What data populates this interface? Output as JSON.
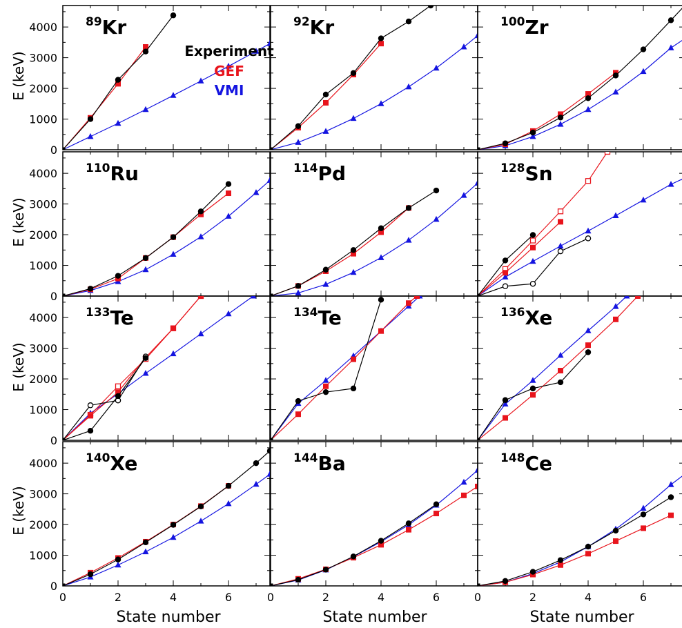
{
  "figure": {
    "ylabel": "E (keV)",
    "xlabel": "State number",
    "legend": [
      {
        "label": "Experiment",
        "color": "#000000"
      },
      {
        "label": "GEF",
        "color": "#e8141c"
      },
      {
        "label": "VMI",
        "color": "#1414e0"
      }
    ],
    "colors": {
      "experiment": "#000000",
      "gef": "#e8141c",
      "vmi": "#1414e0"
    },
    "y_ticks": [
      "0",
      "1000",
      "2000",
      "3000",
      "4000"
    ],
    "x_ticks": [
      "0",
      "2",
      "4",
      "6"
    ]
  },
  "chart_data": [
    {
      "type": "line",
      "mass": "89",
      "element": "Kr",
      "xlim": [
        0,
        7.5
      ],
      "ylim": [
        0,
        4700
      ],
      "series": [
        {
          "name": "Experiment",
          "marker": "circle",
          "color": "#000000",
          "x": [
            0,
            1,
            2,
            3,
            4
          ],
          "values": [
            0,
            1000,
            2280,
            3200,
            4380
          ]
        },
        {
          "name": "GEF",
          "marker": "square",
          "color": "#e8141c",
          "x": [
            0,
            1,
            2,
            3
          ],
          "values": [
            0,
            1040,
            2150,
            3350
          ]
        },
        {
          "name": "VMI",
          "marker": "triangle",
          "color": "#1414e0",
          "x": [
            0,
            1,
            2,
            3,
            4,
            5,
            6,
            7,
            7.5
          ],
          "values": [
            0,
            430,
            860,
            1310,
            1770,
            2240,
            2720,
            3210,
            3460
          ],
          "marker_count": 8
        }
      ]
    },
    {
      "type": "line",
      "mass": "92",
      "element": "Kr",
      "xlim": [
        0,
        7.5
      ],
      "ylim": [
        0,
        4700
      ],
      "series": [
        {
          "name": "Experiment",
          "marker": "circle",
          "color": "#000000",
          "x": [
            0,
            1,
            2,
            3,
            4,
            5,
            5.8
          ],
          "values": [
            0,
            770,
            1800,
            2500,
            3630,
            4180,
            4700
          ],
          "marker_count": 6
        },
        {
          "name": "GEF",
          "marker": "square",
          "color": "#e8141c",
          "x": [
            0,
            1,
            2,
            3,
            4
          ],
          "values": [
            0,
            720,
            1530,
            2450,
            3460
          ]
        },
        {
          "name": "VMI",
          "marker": "triangle",
          "color": "#1414e0",
          "x": [
            0,
            1,
            2,
            3,
            4,
            5,
            6,
            7,
            7.5
          ],
          "values": [
            0,
            240,
            600,
            1020,
            1500,
            2050,
            2660,
            3350,
            3720
          ],
          "marker_count": 8
        }
      ]
    },
    {
      "type": "line",
      "mass": "100",
      "element": "Zr",
      "xlim": [
        0,
        7.5
      ],
      "ylim": [
        0,
        4700
      ],
      "series": [
        {
          "name": "Experiment",
          "marker": "circle",
          "color": "#000000",
          "x": [
            0,
            1,
            2,
            3,
            4,
            5,
            6,
            7,
            7.5
          ],
          "values": [
            0,
            210,
            560,
            1050,
            1680,
            2420,
            3270,
            4220,
            4700
          ],
          "marker_count": 8
        },
        {
          "name": "GEF",
          "marker": "square",
          "color": "#e8141c",
          "x": [
            0,
            1,
            2,
            3,
            4,
            5
          ],
          "values": [
            0,
            180,
            610,
            1160,
            1820,
            2510
          ]
        },
        {
          "name": "VMI",
          "marker": "triangle",
          "color": "#1414e0",
          "x": [
            0,
            1,
            2,
            3,
            4,
            5,
            6,
            7,
            7.5
          ],
          "values": [
            0,
            130,
            430,
            830,
            1310,
            1880,
            2550,
            3320,
            3620
          ],
          "marker_count": 8
        }
      ]
    },
    {
      "type": "line",
      "mass": "110",
      "element": "Ru",
      "xlim": [
        0,
        7.5
      ],
      "ylim": [
        0,
        4700
      ],
      "series": [
        {
          "name": "Experiment",
          "marker": "circle",
          "color": "#000000",
          "x": [
            0,
            1,
            2,
            3,
            4,
            5,
            6
          ],
          "values": [
            0,
            240,
            660,
            1240,
            1920,
            2760,
            3650
          ]
        },
        {
          "name": "GEF",
          "marker": "square",
          "color": "#e8141c",
          "x": [
            0,
            1,
            2,
            3,
            4,
            5,
            6
          ],
          "values": [
            0,
            220,
            570,
            1240,
            1920,
            2660,
            3350
          ]
        },
        {
          "name": "VMI",
          "marker": "triangle",
          "color": "#1414e0",
          "x": [
            0,
            1,
            2,
            3,
            4,
            5,
            6,
            7,
            7.5
          ],
          "values": [
            0,
            180,
            470,
            860,
            1360,
            1930,
            2600,
            3370,
            3770
          ],
          "marker_count": 8
        }
      ]
    },
    {
      "type": "line",
      "mass": "114",
      "element": "Pd",
      "xlim": [
        0,
        7.5
      ],
      "ylim": [
        0,
        4700
      ],
      "series": [
        {
          "name": "Experiment",
          "marker": "circle",
          "color": "#000000",
          "x": [
            0,
            1,
            2,
            3,
            4,
            5,
            6
          ],
          "values": [
            0,
            330,
            860,
            1500,
            2210,
            2870,
            3440
          ]
        },
        {
          "name": "GEF",
          "marker": "square",
          "color": "#e8141c",
          "x": [
            0,
            1,
            2,
            3,
            4,
            5
          ],
          "values": [
            0,
            330,
            810,
            1380,
            2080,
            2870
          ]
        },
        {
          "name": "VMI",
          "marker": "triangle",
          "color": "#1414e0",
          "x": [
            0,
            1,
            2,
            3,
            4,
            5,
            6,
            7,
            7.5
          ],
          "values": [
            0,
            100,
            380,
            770,
            1250,
            1820,
            2500,
            3280,
            3680
          ],
          "marker_count": 8
        }
      ]
    },
    {
      "type": "line",
      "mass": "128",
      "element": "Sn",
      "xlim": [
        0,
        7.5
      ],
      "ylim": [
        0,
        4700
      ],
      "series": [
        {
          "name": "Experiment",
          "marker": "circle",
          "color": "#000000",
          "x": [
            0,
            1,
            2
          ],
          "values": [
            0,
            1160,
            1990
          ]
        },
        {
          "name": "Experiment (open)",
          "marker": "circle-open",
          "color": "#000000",
          "x": [
            0,
            1,
            2,
            3,
            4
          ],
          "values": [
            0,
            320,
            400,
            1460,
            1880
          ]
        },
        {
          "name": "GEF",
          "marker": "square",
          "color": "#e8141c",
          "x": [
            0,
            1,
            2,
            3
          ],
          "values": [
            0,
            760,
            1580,
            2420
          ]
        },
        {
          "name": "GEF (open)",
          "marker": "square-open",
          "color": "#e8141c",
          "x": [
            0,
            1,
            2,
            3,
            4,
            4.7
          ],
          "values": [
            0,
            880,
            1810,
            2760,
            3750,
            4700
          ],
          "marker_count": 5
        },
        {
          "name": "VMI",
          "marker": "triangle",
          "color": "#1414e0",
          "x": [
            0,
            1,
            2,
            3,
            4,
            5,
            6,
            7,
            7.5
          ],
          "values": [
            0,
            620,
            1130,
            1630,
            2120,
            2620,
            3130,
            3640,
            3850
          ],
          "marker_count": 8
        }
      ]
    },
    {
      "type": "line",
      "mass": "133",
      "element": "Te",
      "xlim": [
        0,
        7.5
      ],
      "ylim": [
        0,
        4700
      ],
      "series": [
        {
          "name": "Experiment",
          "marker": "circle",
          "color": "#000000",
          "x": [
            0,
            1,
            2,
            3
          ],
          "values": [
            0,
            310,
            1440,
            2680
          ]
        },
        {
          "name": "Experiment (open)",
          "marker": "circle-open",
          "color": "#000000",
          "x": [
            0,
            1,
            2,
            3
          ],
          "values": [
            0,
            1140,
            1300,
            2730
          ]
        },
        {
          "name": "GEF",
          "marker": "square",
          "color": "#e8141c",
          "x": [
            0,
            1,
            2,
            3,
            4,
            5
          ],
          "values": [
            0,
            800,
            1570,
            2700,
            3650,
            4700
          ]
        },
        {
          "name": "GEF (open)",
          "marker": "square-open",
          "color": "#e8141c",
          "x": [
            0,
            1,
            2,
            3,
            4,
            5
          ],
          "values": [
            0,
            830,
            1760,
            2650,
            3650,
            4700
          ]
        },
        {
          "name": "VMI",
          "marker": "triangle",
          "color": "#1414e0",
          "x": [
            0,
            1,
            2,
            3,
            4,
            5,
            6,
            6.9
          ],
          "values": [
            0,
            880,
            1520,
            2180,
            2820,
            3470,
            4120,
            4700
          ],
          "marker_count": 7
        }
      ]
    },
    {
      "type": "line",
      "mass": "134",
      "element": "Te",
      "xlim": [
        0,
        7.5
      ],
      "ylim": [
        0,
        4700
      ],
      "series": [
        {
          "name": "Experiment",
          "marker": "circle",
          "color": "#000000",
          "x": [
            0,
            1,
            2,
            3,
            4
          ],
          "values": [
            0,
            1280,
            1570,
            1690,
            4580
          ]
        },
        {
          "name": "GEF",
          "marker": "square",
          "color": "#e8141c",
          "x": [
            0,
            1,
            2,
            3,
            4,
            5,
            5.3
          ],
          "values": [
            0,
            850,
            1760,
            2640,
            3560,
            4470,
            4700
          ],
          "marker_count": 6
        },
        {
          "name": "VMI",
          "marker": "triangle",
          "color": "#1414e0",
          "x": [
            0,
            1,
            2,
            3,
            4,
            5,
            5.4
          ],
          "values": [
            0,
            1200,
            1950,
            2750,
            3560,
            4370,
            4700
          ],
          "marker_count": 6
        }
      ]
    },
    {
      "type": "line",
      "mass": "136",
      "element": "Xe",
      "xlim": [
        0,
        7.5
      ],
      "ylim": [
        0,
        4700
      ],
      "series": [
        {
          "name": "Experiment",
          "marker": "circle",
          "color": "#000000",
          "x": [
            0,
            1,
            2,
            3,
            4
          ],
          "values": [
            0,
            1310,
            1690,
            1890,
            2870
          ]
        },
        {
          "name": "GEF",
          "marker": "square",
          "color": "#e8141c",
          "x": [
            0,
            1,
            2,
            3,
            4,
            5,
            5.8
          ],
          "values": [
            0,
            730,
            1480,
            2270,
            3100,
            3940,
            4700
          ],
          "marker_count": 6
        },
        {
          "name": "VMI",
          "marker": "triangle",
          "color": "#1414e0",
          "x": [
            0,
            1,
            2,
            3,
            4,
            5,
            5.4
          ],
          "values": [
            0,
            1180,
            1950,
            2770,
            3570,
            4360,
            4700
          ],
          "marker_count": 6
        }
      ]
    },
    {
      "type": "line",
      "mass": "140",
      "element": "Xe",
      "xlim": [
        0,
        7.5
      ],
      "ylim": [
        0,
        4700
      ],
      "series": [
        {
          "name": "Experiment",
          "marker": "circle",
          "color": "#000000",
          "x": [
            0,
            1,
            2,
            3,
            4,
            5,
            6,
            7,
            7.5
          ],
          "values": [
            0,
            380,
            860,
            1420,
            1990,
            2590,
            3260,
            4000,
            4400
          ],
          "marker_count": 8
        },
        {
          "name": "GEF",
          "marker": "square",
          "color": "#e8141c",
          "x": [
            0,
            1,
            2,
            3,
            4,
            5,
            6
          ],
          "values": [
            0,
            430,
            910,
            1440,
            2000,
            2600,
            3260
          ]
        },
        {
          "name": "VMI",
          "marker": "triangle",
          "color": "#1414e0",
          "x": [
            0,
            1,
            2,
            3,
            4,
            5,
            6,
            7,
            7.5
          ],
          "values": [
            0,
            290,
            680,
            1110,
            1580,
            2110,
            2680,
            3310,
            3640
          ],
          "marker_count": 8
        }
      ]
    },
    {
      "type": "line",
      "mass": "144",
      "element": "Ba",
      "xlim": [
        0,
        7.5
      ],
      "ylim": [
        0,
        4700
      ],
      "series": [
        {
          "name": "Experiment",
          "marker": "circle",
          "color": "#000000",
          "x": [
            0,
            1,
            2,
            3,
            4,
            5,
            6
          ],
          "values": [
            0,
            200,
            530,
            960,
            1470,
            2040,
            2660
          ]
        },
        {
          "name": "GEF",
          "marker": "square",
          "color": "#e8141c",
          "x": [
            0,
            1,
            2,
            3,
            4,
            5,
            6,
            7,
            7.5
          ],
          "values": [
            0,
            230,
            540,
            920,
            1340,
            1830,
            2360,
            2950,
            3240
          ],
          "marker_count": 8
        },
        {
          "name": "VMI",
          "marker": "triangle",
          "color": "#1414e0",
          "x": [
            0,
            1,
            2,
            3,
            4,
            5,
            6,
            7,
            7.5
          ],
          "values": [
            0,
            190,
            520,
            950,
            1440,
            1990,
            2630,
            3380,
            3770
          ],
          "marker_count": 8
        }
      ]
    },
    {
      "type": "line",
      "mass": "148",
      "element": "Ce",
      "xlim": [
        0,
        7.5
      ],
      "ylim": [
        0,
        4700
      ],
      "series": [
        {
          "name": "Experiment",
          "marker": "circle",
          "color": "#000000",
          "x": [
            0,
            1,
            2,
            3,
            4,
            5,
            6,
            7
          ],
          "values": [
            0,
            160,
            460,
            840,
            1280,
            1800,
            2330,
            2890
          ]
        },
        {
          "name": "GEF",
          "marker": "square",
          "color": "#e8141c",
          "x": [
            0,
            1,
            2,
            3,
            4,
            5,
            6,
            7
          ],
          "values": [
            0,
            120,
            370,
            680,
            1050,
            1460,
            1880,
            2300
          ]
        },
        {
          "name": "VMI",
          "marker": "triangle",
          "color": "#1414e0",
          "x": [
            0,
            1,
            2,
            3,
            4,
            5,
            6,
            7,
            7.5
          ],
          "values": [
            0,
            120,
            400,
            780,
            1280,
            1850,
            2530,
            3300,
            3640
          ],
          "marker_count": 8
        }
      ]
    }
  ]
}
